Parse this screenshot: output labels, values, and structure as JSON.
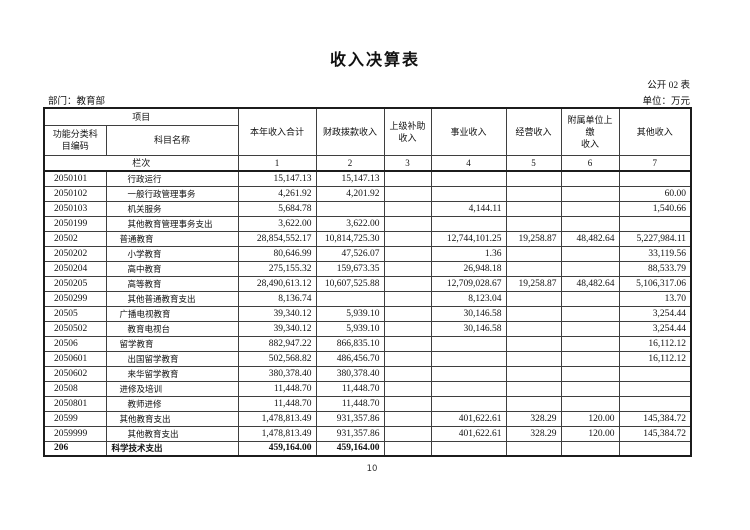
{
  "page": {
    "title": "收入决算表",
    "table_code": "公开 02 表",
    "department_label": "部门：教育部",
    "unit_label": "单位：万元",
    "page_number": "10"
  },
  "table": {
    "header": {
      "project": "项目",
      "code_col": "功能分类科\n目编码",
      "name_col": "科目名称",
      "columns": [
        "本年收入合计",
        "财政拨款收入",
        "上级补助\n收入",
        "事业收入",
        "经营收入",
        "附属单位上缴\n收入",
        "其他收入"
      ],
      "lanci_label": "栏次",
      "column_numbers": [
        "1",
        "2",
        "3",
        "4",
        "5",
        "6",
        "7"
      ]
    },
    "rows": [
      {
        "code": "2050101",
        "name": "行政运行",
        "level": 2,
        "bold": false,
        "v": [
          "15,147.13",
          "15,147.13",
          "",
          "",
          "",
          "",
          ""
        ]
      },
      {
        "code": "2050102",
        "name": "一般行政管理事务",
        "level": 2,
        "bold": false,
        "v": [
          "4,261.92",
          "4,201.92",
          "",
          "",
          "",
          "",
          "60.00"
        ]
      },
      {
        "code": "2050103",
        "name": "机关服务",
        "level": 2,
        "bold": false,
        "v": [
          "5,684.78",
          "",
          "",
          "4,144.11",
          "",
          "",
          "1,540.66"
        ]
      },
      {
        "code": "2050199",
        "name": "其他教育管理事务支出",
        "level": 2,
        "bold": false,
        "v": [
          "3,622.00",
          "3,622.00",
          "",
          "",
          "",
          "",
          ""
        ]
      },
      {
        "code": "20502",
        "name": "普通教育",
        "level": 1,
        "bold": false,
        "v": [
          "28,854,552.17",
          "10,814,725.30",
          "",
          "12,744,101.25",
          "19,258.87",
          "48,482.64",
          "5,227,984.11"
        ]
      },
      {
        "code": "2050202",
        "name": "小学教育",
        "level": 2,
        "bold": false,
        "v": [
          "80,646.99",
          "47,526.07",
          "",
          "1.36",
          "",
          "",
          "33,119.56"
        ]
      },
      {
        "code": "2050204",
        "name": "高中教育",
        "level": 2,
        "bold": false,
        "v": [
          "275,155.32",
          "159,673.35",
          "",
          "26,948.18",
          "",
          "",
          "88,533.79"
        ]
      },
      {
        "code": "2050205",
        "name": "高等教育",
        "level": 2,
        "bold": false,
        "v": [
          "28,490,613.12",
          "10,607,525.88",
          "",
          "12,709,028.67",
          "19,258.87",
          "48,482.64",
          "5,106,317.06"
        ]
      },
      {
        "code": "2050299",
        "name": "其他普通教育支出",
        "level": 2,
        "bold": false,
        "v": [
          "8,136.74",
          "",
          "",
          "8,123.04",
          "",
          "",
          "13.70"
        ]
      },
      {
        "code": "20505",
        "name": "广播电视教育",
        "level": 1,
        "bold": false,
        "v": [
          "39,340.12",
          "5,939.10",
          "",
          "30,146.58",
          "",
          "",
          "3,254.44"
        ]
      },
      {
        "code": "2050502",
        "name": "教育电视台",
        "level": 2,
        "bold": false,
        "v": [
          "39,340.12",
          "5,939.10",
          "",
          "30,146.58",
          "",
          "",
          "3,254.44"
        ]
      },
      {
        "code": "20506",
        "name": "留学教育",
        "level": 1,
        "bold": false,
        "v": [
          "882,947.22",
          "866,835.10",
          "",
          "",
          "",
          "",
          "16,112.12"
        ]
      },
      {
        "code": "2050601",
        "name": "出国留学教育",
        "level": 2,
        "bold": false,
        "v": [
          "502,568.82",
          "486,456.70",
          "",
          "",
          "",
          "",
          "16,112.12"
        ]
      },
      {
        "code": "2050602",
        "name": "来华留学教育",
        "level": 2,
        "bold": false,
        "v": [
          "380,378.40",
          "380,378.40",
          "",
          "",
          "",
          "",
          ""
        ]
      },
      {
        "code": "20508",
        "name": "进修及培训",
        "level": 1,
        "bold": false,
        "v": [
          "11,448.70",
          "11,448.70",
          "",
          "",
          "",
          "",
          ""
        ]
      },
      {
        "code": "2050801",
        "name": "教师进修",
        "level": 2,
        "bold": false,
        "v": [
          "11,448.70",
          "11,448.70",
          "",
          "",
          "",
          "",
          ""
        ]
      },
      {
        "code": "20599",
        "name": "其他教育支出",
        "level": 1,
        "bold": false,
        "v": [
          "1,478,813.49",
          "931,357.86",
          "",
          "401,622.61",
          "328.29",
          "120.00",
          "145,384.72"
        ]
      },
      {
        "code": "2059999",
        "name": "其他教育支出",
        "level": 2,
        "bold": false,
        "v": [
          "1,478,813.49",
          "931,357.86",
          "",
          "401,622.61",
          "328.29",
          "120.00",
          "145,384.72"
        ]
      },
      {
        "code": "206",
        "name": "科学技术支出",
        "level": 0,
        "bold": true,
        "v": [
          "459,164.00",
          "459,164.00",
          "",
          "",
          "",
          "",
          ""
        ]
      }
    ]
  }
}
